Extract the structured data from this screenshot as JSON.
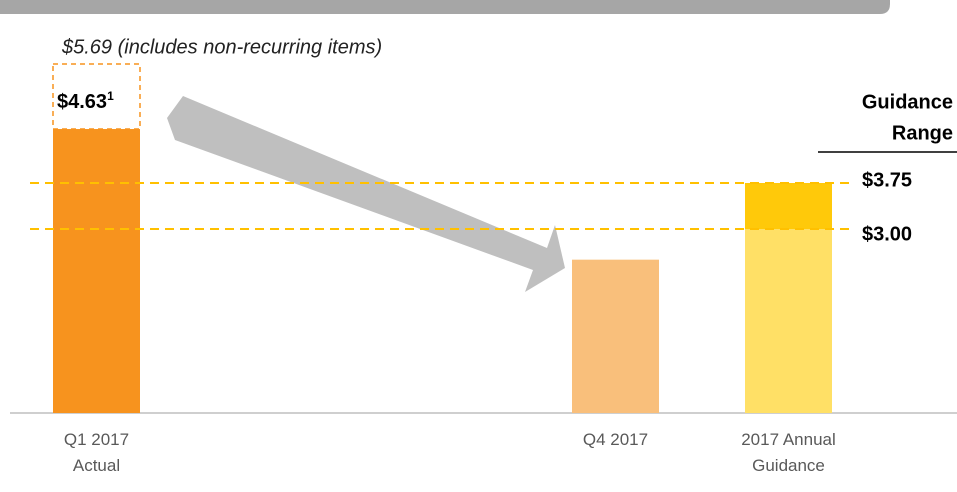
{
  "chart_data": {
    "type": "bar",
    "annotation": "$5.69 (includes non-recurring items)",
    "non_recurring_value": 5.69,
    "categories": [
      "Q1 2017 Actual",
      "Q4 2017",
      "2017 Annual Guidance"
    ],
    "values": [
      4.63,
      2.5,
      3.0
    ],
    "colors": [
      "#f7931e",
      "#f9bf7b",
      "#ffe066"
    ],
    "value_label": "$4.63",
    "footnote": "1",
    "guidance_range": {
      "value": 0.75,
      "color": "#ffc90a"
    },
    "guidance_title": [
      "Guidance",
      "Range"
    ],
    "guidance_lines": [
      {
        "value": 3.75,
        "label": "$3.75"
      },
      {
        "value": 3.0,
        "label": "$3.00"
      }
    ],
    "line_color": "#ffc000",
    "ylim": [
      0,
      6
    ]
  }
}
